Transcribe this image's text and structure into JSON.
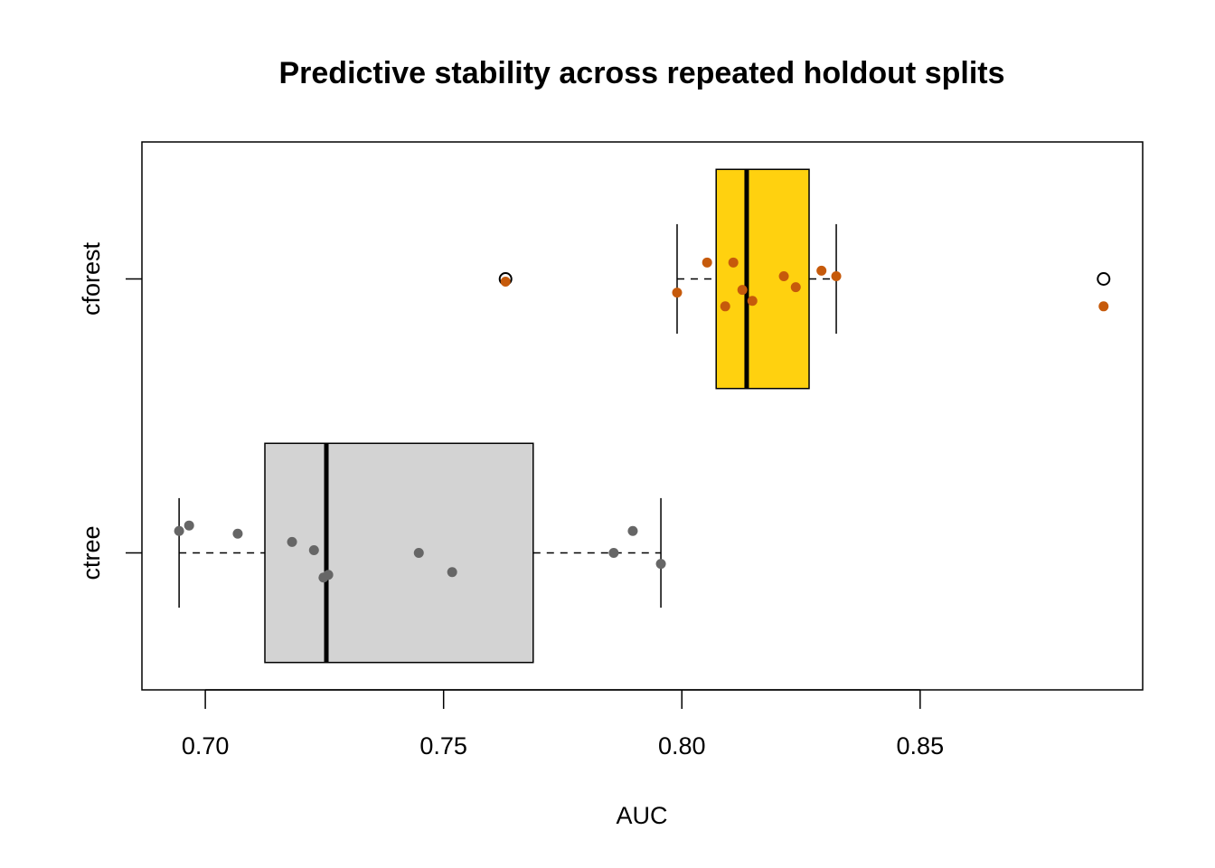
{
  "chart_data": {
    "type": "boxplot",
    "orientation": "horizontal",
    "title": "Predictive stability across repeated holdout splits",
    "xlabel": "AUC",
    "ylabel": "",
    "xlim": [
      0.6867,
      0.8967
    ],
    "x_ticks": [
      0.7,
      0.75,
      0.8,
      0.85
    ],
    "x_tick_labels": [
      "0.70",
      "0.75",
      "0.80",
      "0.85"
    ],
    "categories": [
      "ctree",
      "cforest"
    ],
    "grid": false,
    "legend": null,
    "series": [
      {
        "name": "ctree",
        "box_fill": "#D3D3D3",
        "point_color": "#666666",
        "stats": {
          "whisker_low": 0.6945,
          "q1": 0.7125,
          "median": 0.7254,
          "q3": 0.7688,
          "whisker_high": 0.7956
        },
        "outliers": [],
        "points": [
          {
            "x": 0.6945,
            "jitter": 0.08
          },
          {
            "x": 0.6966,
            "jitter": 0.1
          },
          {
            "x": 0.7068,
            "jitter": 0.07
          },
          {
            "x": 0.7182,
            "jitter": 0.04
          },
          {
            "x": 0.7228,
            "jitter": 0.01
          },
          {
            "x": 0.7248,
            "jitter": -0.09
          },
          {
            "x": 0.7258,
            "jitter": -0.08
          },
          {
            "x": 0.7448,
            "jitter": 0.0
          },
          {
            "x": 0.7518,
            "jitter": -0.07
          },
          {
            "x": 0.7857,
            "jitter": 0.0
          },
          {
            "x": 0.7897,
            "jitter": 0.08
          },
          {
            "x": 0.7956,
            "jitter": -0.04
          }
        ]
      },
      {
        "name": "cforest",
        "box_fill": "#FFD10F",
        "point_color": "#C65A0B",
        "stats": {
          "whisker_low": 0.799,
          "q1": 0.8072,
          "median": 0.8136,
          "q3": 0.8267,
          "whisker_high": 0.8324
        },
        "outliers": [
          0.763,
          0.8885
        ],
        "points": [
          {
            "x": 0.763,
            "jitter": -0.01
          },
          {
            "x": 0.799,
            "jitter": -0.05
          },
          {
            "x": 0.8053,
            "jitter": 0.06
          },
          {
            "x": 0.8108,
            "jitter": 0.06
          },
          {
            "x": 0.8091,
            "jitter": -0.1
          },
          {
            "x": 0.8127,
            "jitter": -0.04
          },
          {
            "x": 0.8148,
            "jitter": -0.08
          },
          {
            "x": 0.8214,
            "jitter": 0.01
          },
          {
            "x": 0.8239,
            "jitter": -0.03
          },
          {
            "x": 0.8293,
            "jitter": 0.03
          },
          {
            "x": 0.8324,
            "jitter": 0.01
          },
          {
            "x": 0.8885,
            "jitter": -0.1
          }
        ]
      }
    ]
  }
}
